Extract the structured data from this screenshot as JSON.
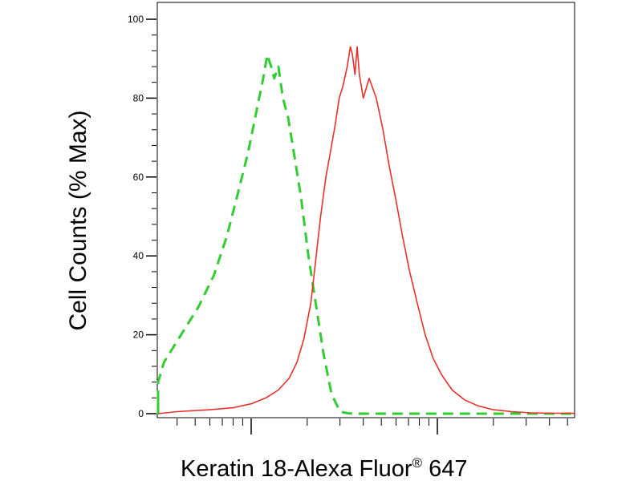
{
  "chart_data": {
    "type": "line",
    "title": "",
    "xlabel": "Keratin 18-Alexa Fluor",
    "xlabel_superscript": "®",
    "xlabel_suffix": " 647",
    "ylabel": "Cell Counts (% Max)",
    "xscale": "log",
    "ylim": [
      0,
      100
    ],
    "yticks": [
      "0",
      "20",
      "40",
      "60",
      "80",
      "100"
    ],
    "grid": false,
    "legend": "none",
    "series": [
      {
        "color": "#33cc33",
        "style": "dashed",
        "x": [
          0.6,
          0.66,
          0.72,
          0.8,
          0.9,
          1.0,
          1.2,
          1.5,
          2.0,
          2.7,
          3.4,
          4.2,
          5.2,
          6.3,
          7.4,
          8.5,
          9.6,
          10.6,
          11.6,
          12.2,
          12.8,
          13.3,
          14.0,
          14.8,
          15.8,
          17.1,
          18.5,
          20.3,
          22.2,
          24.5,
          27.0,
          30.0,
          33.0,
          36.0,
          40.0,
          47.0,
          60.0,
          100.0,
          200.0,
          400.0,
          700.0,
          1000.0,
          1300.0
        ],
        "y": [
          3.5,
          2.0,
          0.5,
          1.5,
          0.2,
          0.2,
          0.1,
          1.0,
          3.0,
          8.0,
          13.0,
          20.0,
          27.0,
          35.0,
          45.0,
          56.0,
          66.0,
          76.0,
          85.0,
          91.0,
          88.0,
          85.0,
          88.0,
          80.0,
          75.0,
          65.0,
          55.0,
          40.0,
          28.0,
          15.0,
          5.0,
          0.5,
          0.1,
          0,
          0,
          0,
          0,
          0,
          0,
          0,
          0,
          0,
          0
        ]
      },
      {
        "color": "#e8302a",
        "style": "solid",
        "x": [
          0.6,
          1.0,
          2.0,
          4.0,
          6.0,
          8.0,
          10.0,
          12.0,
          14.0,
          16.0,
          17.6,
          19.2,
          20.9,
          22.1,
          23.6,
          25.2,
          26.8,
          28.2,
          29.7,
          31.1,
          32.8,
          34.1,
          35.0,
          36.1,
          37.1,
          38.1,
          40.0,
          43.0,
          47.0,
          51.0,
          55.0,
          60.0,
          65.0,
          71.0,
          78.0,
          86.0,
          95.0,
          105.0,
          120.0,
          140.0,
          165.0,
          200.0,
          250.0,
          320.0,
          420.0,
          560.0,
          750.0,
          1000.0,
          1300.0
        ],
        "y": [
          0,
          0,
          0,
          0.5,
          1.0,
          1.5,
          2.5,
          4.0,
          6.0,
          9.0,
          13.0,
          19.0,
          28.0,
          38.0,
          50.0,
          60.0,
          67.0,
          73.0,
          80.0,
          83.0,
          88.0,
          93.0,
          91.0,
          86.0,
          93.0,
          86.0,
          80.0,
          85.0,
          80.0,
          72.0,
          63.0,
          54.0,
          45.0,
          36.0,
          28.0,
          20.0,
          14.0,
          10.0,
          6.0,
          3.5,
          2.0,
          1.0,
          0.5,
          0.2,
          0.1,
          0.1,
          0,
          0,
          0.2
        ]
      }
    ]
  }
}
